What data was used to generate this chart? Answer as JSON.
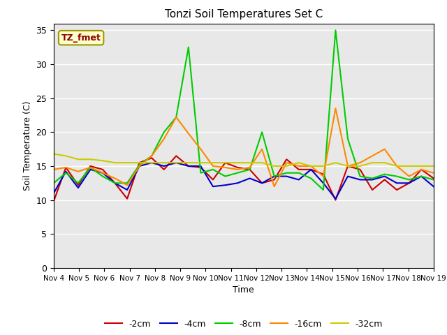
{
  "title": "Tonzi Soil Temperatures Set C",
  "xlabel": "Time",
  "ylabel": "Soil Temperature (C)",
  "annotation_label": "TZ_fmet",
  "annotation_color": "#8B0000",
  "annotation_bg": "#FFFFCC",
  "annotation_edge": "#999900",
  "ylim": [
    0,
    36
  ],
  "yticks": [
    0,
    5,
    10,
    15,
    20,
    25,
    30,
    35
  ],
  "bg_color": "#E8E8E8",
  "fig_bg": "#FFFFFF",
  "xtick_labels": [
    "Nov 4",
    "Nov 5",
    "Nov 6",
    "Nov 7",
    "Nov 8",
    "Nov 9",
    "Nov 10",
    "Nov 11",
    "Nov 12",
    "Nov 13",
    "Nov 14",
    "Nov 15",
    "Nov 16",
    "Nov 17",
    "Nov 18",
    "Nov 19"
  ],
  "series_order": [
    "-2cm",
    "-4cm",
    "-8cm",
    "-16cm",
    "-32cm"
  ],
  "series": {
    "-2cm": {
      "color": "#CC0000",
      "lw": 1.5
    },
    "-4cm": {
      "color": "#0000CC",
      "lw": 1.5
    },
    "-8cm": {
      "color": "#00CC00",
      "lw": 1.5
    },
    "-16cm": {
      "color": "#FF8800",
      "lw": 1.5
    },
    "-32cm": {
      "color": "#CCCC00",
      "lw": 1.5
    }
  },
  "data": {
    "-2cm": [
      9.8,
      14.8,
      12.2,
      15.0,
      14.5,
      12.5,
      10.2,
      15.5,
      16.2,
      14.5,
      16.5,
      15.0,
      14.8,
      13.0,
      15.5,
      14.8,
      14.5,
      12.5,
      13.0,
      16.0,
      14.5,
      14.5,
      13.8,
      10.0,
      15.0,
      14.5,
      11.5,
      13.0,
      11.5,
      12.5,
      14.5,
      13.2
    ],
    "-4cm": [
      11.0,
      14.2,
      11.8,
      14.5,
      14.0,
      12.5,
      11.5,
      15.0,
      15.5,
      15.0,
      15.5,
      15.0,
      15.0,
      12.0,
      12.2,
      12.5,
      13.2,
      12.5,
      13.5,
      13.5,
      13.0,
      14.5,
      12.5,
      10.2,
      13.5,
      13.0,
      13.0,
      13.5,
      12.5,
      12.5,
      13.5,
      12.0
    ],
    "-8cm": [
      12.5,
      14.0,
      12.5,
      14.8,
      13.5,
      12.5,
      12.5,
      15.2,
      16.5,
      20.0,
      22.2,
      32.5,
      14.0,
      14.5,
      13.5,
      14.0,
      14.5,
      20.0,
      13.5,
      14.0,
      14.0,
      13.2,
      11.5,
      35.0,
      19.0,
      13.5,
      13.2,
      13.8,
      13.5,
      13.0,
      13.5,
      13.0
    ],
    "-16cm": [
      14.5,
      14.8,
      14.2,
      14.8,
      14.0,
      13.2,
      12.2,
      15.0,
      16.5,
      19.0,
      22.2,
      19.8,
      17.5,
      15.0,
      14.8,
      14.5,
      14.8,
      17.5,
      12.0,
      15.5,
      15.0,
      15.0,
      13.5,
      23.5,
      15.0,
      15.5,
      16.5,
      17.5,
      15.0,
      13.5,
      14.5,
      14.0
    ],
    "-32cm": [
      16.8,
      16.5,
      16.0,
      16.0,
      15.8,
      15.5,
      15.5,
      15.5,
      15.5,
      15.5,
      15.5,
      15.5,
      15.5,
      15.5,
      15.5,
      15.5,
      15.5,
      15.5,
      15.0,
      15.0,
      15.5,
      15.0,
      15.0,
      15.5,
      15.0,
      15.0,
      15.5,
      15.5,
      15.0,
      15.0,
      15.0,
      15.0
    ]
  },
  "n_points": 32,
  "xlim_data": [
    0,
    15
  ]
}
